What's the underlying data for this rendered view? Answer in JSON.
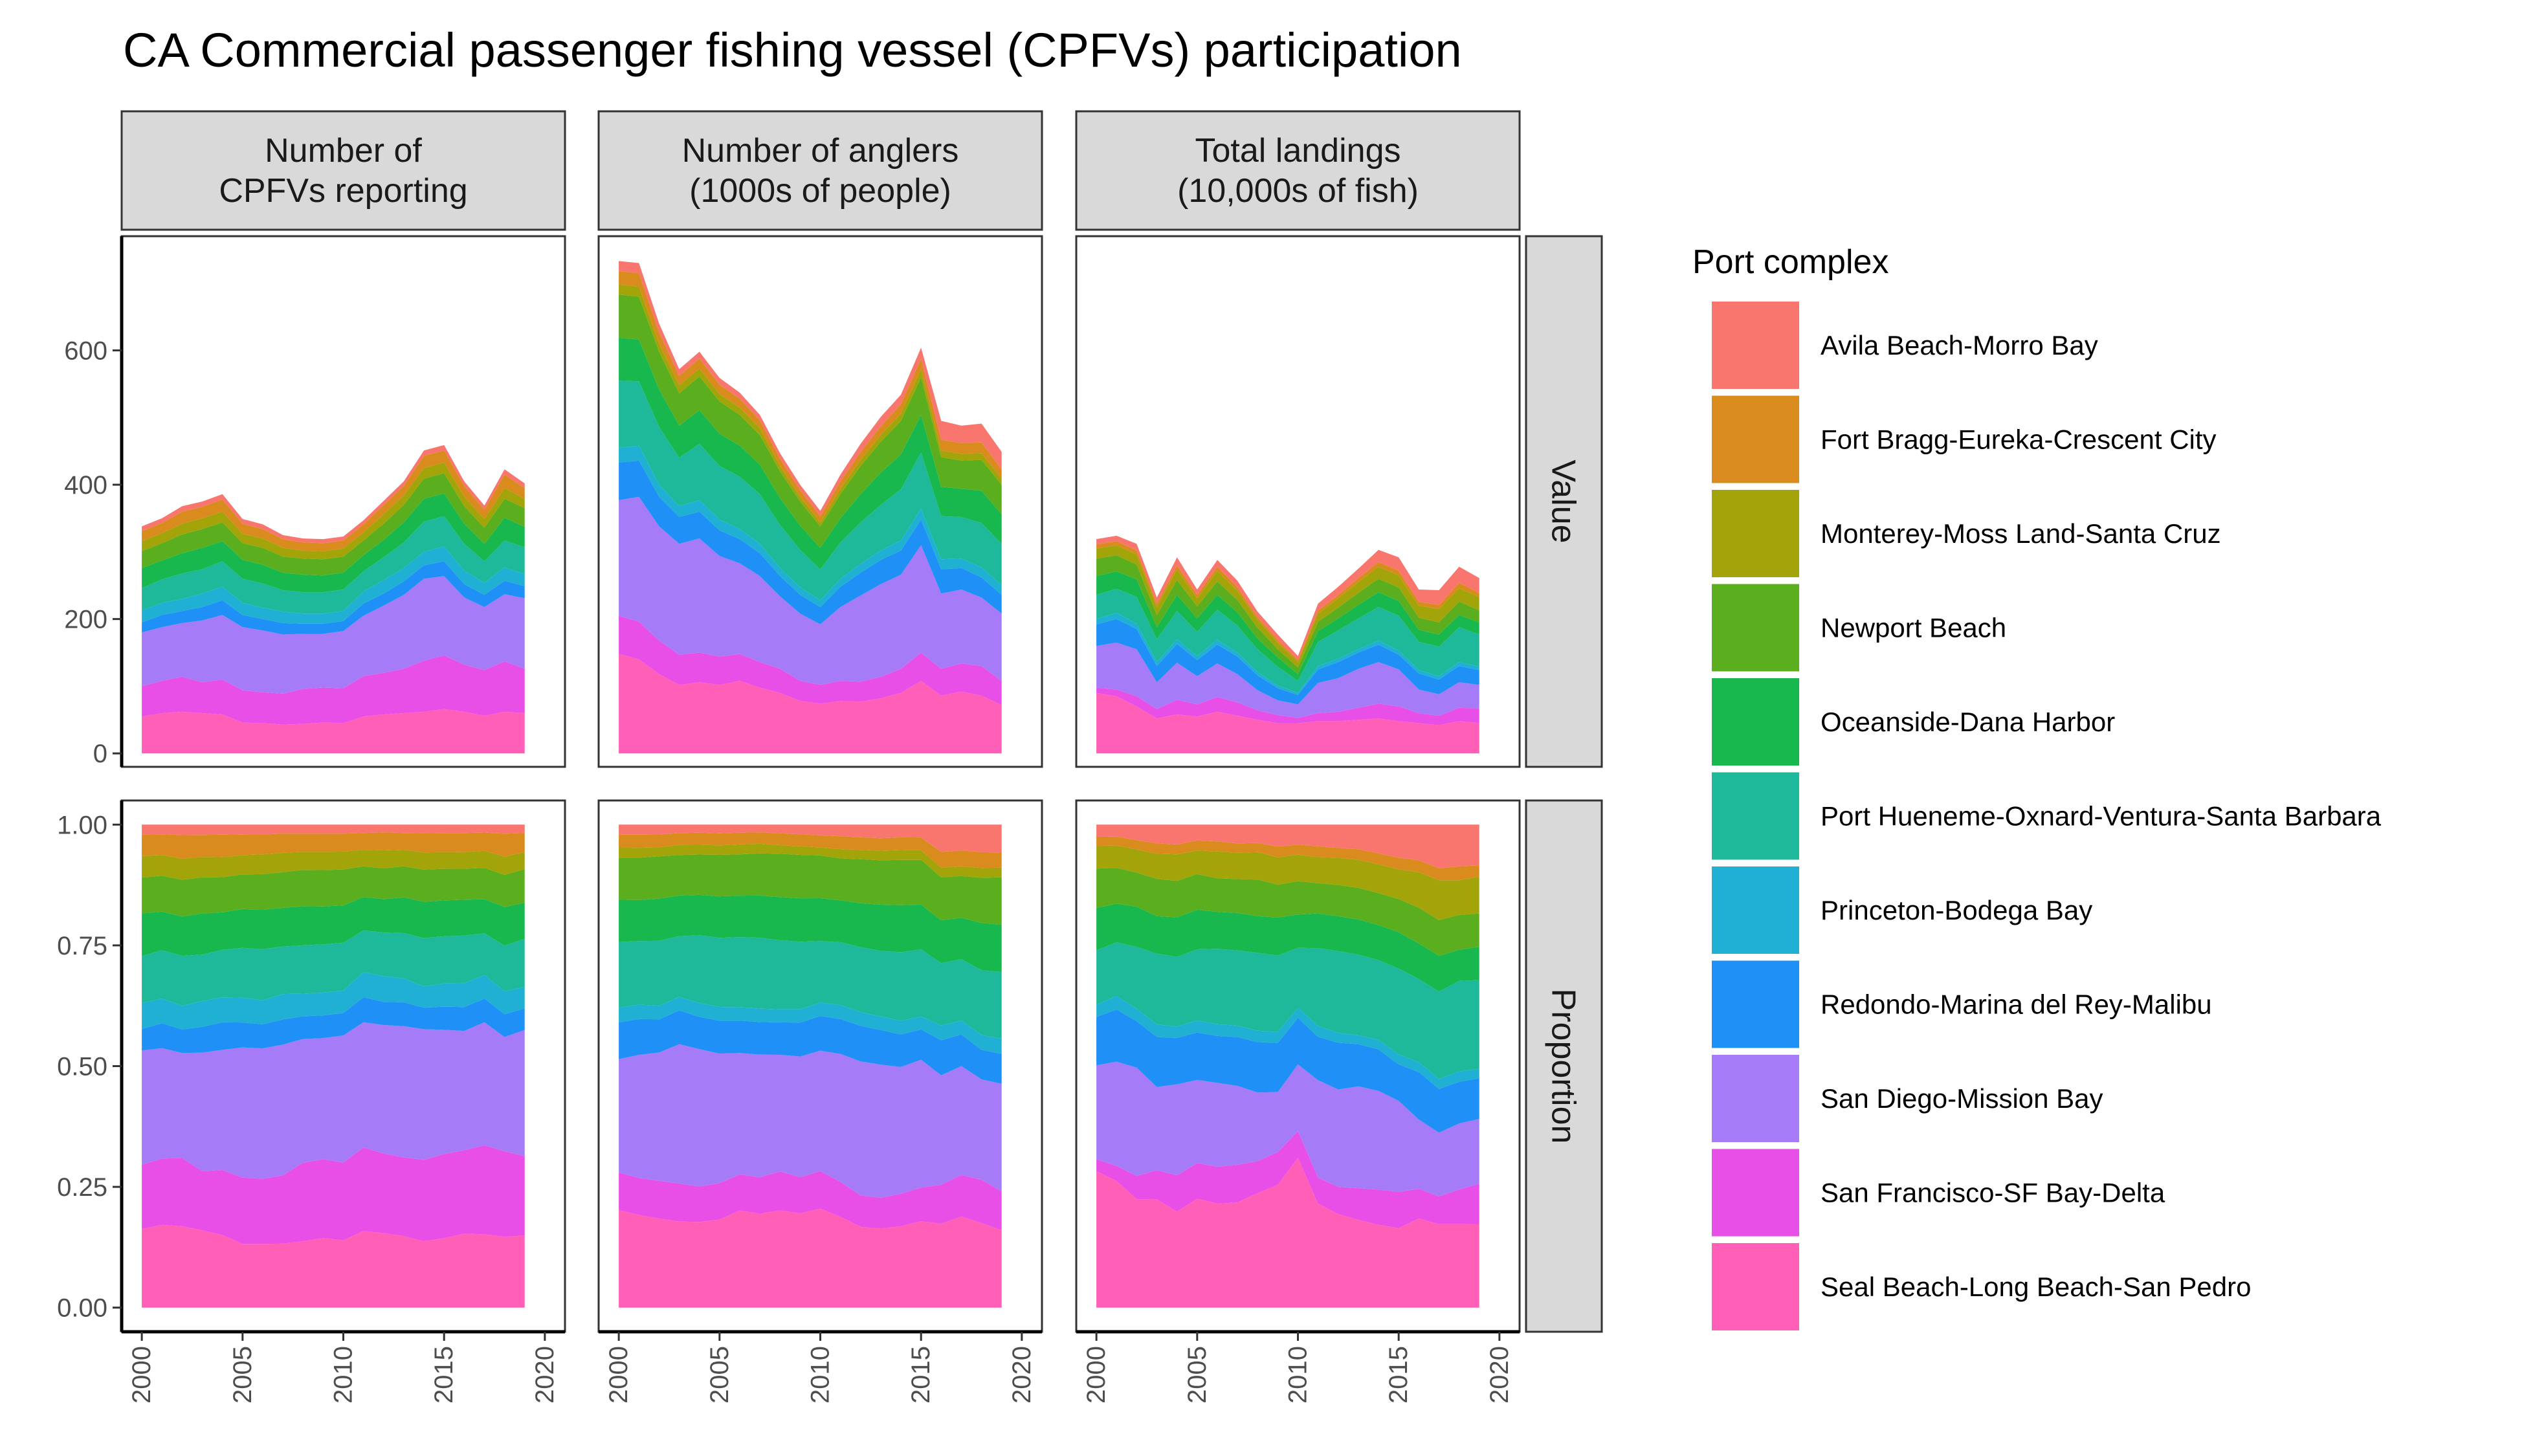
{
  "title": "CA Commercial passenger fishing vessel (CPFVs) participation",
  "legend": {
    "title": "Port complex"
  },
  "colors": {
    "Avila Beach-Morro Bay": "#F8766D",
    "Fort Bragg-Eureka-Crescent City": "#D98B1E",
    "Monterey-Moss Land-Santa Cruz": "#A3A30A",
    "Newport Beach": "#5BAE1E",
    "Oceanside-Dana Harbor": "#19B84E",
    "Port Hueneme-Oxnard-Ventura-Santa Barbara": "#1EB99A",
    "Princeton-Bodega Bay": "#1FB0D4",
    "Redondo-Marina del Rey-Malibu": "#1F90F5",
    "San Diego-Mission Bay": "#A57BF8",
    "San Francisco-SF Bay-Delta": "#E84FE6",
    "Seal Beach-Long Beach-San Pedro": "#FF5FB6"
  },
  "chart_data": {
    "type": "area",
    "stacked": true,
    "title": "CA Commercial passenger fishing vessel (CPFVs) participation",
    "x": [
      2000,
      2001,
      2002,
      2003,
      2004,
      2005,
      2006,
      2007,
      2008,
      2009,
      2010,
      2011,
      2012,
      2013,
      2014,
      2015,
      2016,
      2017,
      2018,
      2019
    ],
    "x_ticks": [
      "2000",
      "2005",
      "2010",
      "2015",
      "2020"
    ],
    "xlim": [
      1999,
      2021
    ],
    "columns": [
      {
        "key": "vessels",
        "label": "Number of\nCPFVs reporting"
      },
      {
        "key": "anglers",
        "label": "Number of anglers\n(1000s of people)"
      },
      {
        "key": "landings",
        "label": "Total landings\n(10,000s of fish)"
      }
    ],
    "rows": [
      {
        "key": "value",
        "label": "Value",
        "ylim": [
          -20,
          770
        ],
        "y_ticks": [
          0,
          200,
          400,
          600
        ],
        "y_tick_labels": [
          "0",
          "200",
          "400",
          "600"
        ]
      },
      {
        "key": "proportion",
        "label": "Proportion",
        "ylim": [
          -0.05,
          1.05
        ],
        "y_ticks": [
          0,
          0.25,
          0.5,
          0.75,
          1
        ],
        "y_tick_labels": [
          "0.00",
          "0.25",
          "0.50",
          "0.75",
          "1.00"
        ]
      }
    ],
    "grid": false,
    "legend_position": "right",
    "series_order": [
      "Seal Beach-Long Beach-San Pedro",
      "San Francisco-SF Bay-Delta",
      "San Diego-Mission Bay",
      "Redondo-Marina del Rey-Malibu",
      "Princeton-Bodega Bay",
      "Port Hueneme-Oxnard-Ventura-Santa Barbara",
      "Oceanside-Dana Harbor",
      "Newport Beach",
      "Monterey-Moss Land-Santa Cruz",
      "Fort Bragg-Eureka-Crescent City",
      "Avila Beach-Morro Bay"
    ],
    "legend_order": [
      "Avila Beach-Morro Bay",
      "Fort Bragg-Eureka-Crescent City",
      "Monterey-Moss Land-Santa Cruz",
      "Newport Beach",
      "Oceanside-Dana Harbor",
      "Port Hueneme-Oxnard-Ventura-Santa Barbara",
      "Princeton-Bodega Bay",
      "Redondo-Marina del Rey-Malibu",
      "San Diego-Mission Bay",
      "San Francisco-SF Bay-Delta",
      "Seal Beach-Long Beach-San Pedro"
    ],
    "series": {
      "vessels": [
        {
          "name": "Seal Beach-Long Beach-San Pedro",
          "values": [
            55,
            60,
            62,
            60,
            58,
            46,
            45,
            43,
            44,
            46,
            45,
            55,
            58,
            60,
            62,
            66,
            62,
            56,
            62,
            60
          ]
        },
        {
          "name": "San Francisco-SF Bay-Delta",
          "values": [
            45,
            48,
            52,
            46,
            52,
            48,
            46,
            46,
            52,
            52,
            52,
            60,
            62,
            66,
            76,
            80,
            70,
            68,
            75,
            66
          ]
        },
        {
          "name": "San Diego-Mission Bay",
          "values": [
            80,
            80,
            80,
            92,
            96,
            94,
            92,
            88,
            82,
            80,
            85,
            90,
            100,
            110,
            122,
            118,
            100,
            94,
            100,
            105
          ]
        },
        {
          "name": "Redondo-Marina del Rey-Malibu",
          "values": [
            15,
            18,
            18,
            20,
            22,
            18,
            17,
            17,
            15,
            15,
            15,
            18,
            18,
            20,
            20,
            22,
            20,
            18,
            20,
            18
          ]
        },
        {
          "name": "Princeton-Bodega Bay",
          "values": [
            18,
            18,
            18,
            20,
            20,
            18,
            17,
            17,
            15,
            15,
            15,
            18,
            20,
            20,
            20,
            22,
            20,
            18,
            20,
            18
          ]
        },
        {
          "name": "Port Hueneme-Oxnard-Ventura-Santa Barbara",
          "values": [
            33,
            35,
            38,
            36,
            38,
            36,
            36,
            32,
            32,
            32,
            32,
            30,
            34,
            38,
            45,
            45,
            40,
            32,
            40,
            40
          ]
        },
        {
          "name": "Oceanside-Dana Harbor",
          "values": [
            30,
            28,
            30,
            32,
            30,
            28,
            28,
            26,
            26,
            25,
            25,
            24,
            26,
            30,
            34,
            34,
            30,
            26,
            34,
            30
          ]
        },
        {
          "name": "Newport Beach",
          "values": [
            25,
            26,
            28,
            28,
            28,
            25,
            25,
            24,
            24,
            24,
            24,
            22,
            24,
            26,
            30,
            30,
            26,
            24,
            28,
            28
          ]
        },
        {
          "name": "Monterey-Moss Land-Santa Cruz",
          "values": [
            15,
            15,
            16,
            16,
            16,
            14,
            14,
            13,
            12,
            12,
            12,
            12,
            14,
            14,
            16,
            16,
            14,
            13,
            16,
            14
          ]
        },
        {
          "name": "Fort Bragg-Eureka-Crescent City",
          "values": [
            15,
            15,
            18,
            17,
            18,
            15,
            14,
            13,
            12,
            12,
            12,
            12,
            14,
            14,
            18,
            18,
            16,
            14,
            20,
            16
          ]
        },
        {
          "name": "Avila Beach-Morro Bay",
          "values": [
            7,
            7,
            8,
            8,
            8,
            7,
            7,
            6,
            6,
            6,
            6,
            6,
            6,
            7,
            8,
            8,
            7,
            6,
            8,
            7
          ]
        }
      ],
      "anglers": [
        {
          "name": "Seal Beach-Long Beach-San Pedro",
          "values": [
            148,
            140,
            118,
            102,
            106,
            102,
            108,
            98,
            90,
            78,
            74,
            78,
            77,
            82,
            90,
            108,
            86,
            92,
            86,
            72
          ]
        },
        {
          "name": "San Francisco-SF Bay-Delta",
          "values": [
            57,
            56,
            50,
            45,
            44,
            42,
            40,
            38,
            36,
            30,
            28,
            30,
            30,
            32,
            36,
            42,
            40,
            42,
            44,
            36
          ]
        },
        {
          "name": "San Diego-Mission Bay",
          "values": [
            172,
            186,
            170,
            165,
            170,
            150,
            135,
            128,
            108,
            100,
            90,
            110,
            128,
            138,
            140,
            160,
            112,
            110,
            102,
            100
          ]
        },
        {
          "name": "Redondo-Marina del Rey-Malibu",
          "values": [
            56,
            54,
            44,
            40,
            40,
            38,
            36,
            34,
            30,
            28,
            26,
            30,
            34,
            36,
            36,
            38,
            36,
            32,
            30,
            28
          ]
        },
        {
          "name": "Princeton-Bodega Bay",
          "values": [
            22,
            22,
            18,
            16,
            17,
            16,
            15,
            14,
            12,
            11,
            10,
            12,
            13,
            14,
            15,
            16,
            15,
            14,
            15,
            14
          ]
        },
        {
          "name": "Port Hueneme-Oxnard-Ventura-Santa Barbara",
          "values": [
            100,
            96,
            86,
            72,
            84,
            80,
            78,
            74,
            64,
            56,
            46,
            54,
            62,
            68,
            76,
            84,
            64,
            62,
            66,
            62
          ]
        },
        {
          "name": "Oceanside-Dana Harbor",
          "values": [
            64,
            62,
            56,
            48,
            50,
            48,
            46,
            44,
            40,
            36,
            32,
            36,
            42,
            48,
            52,
            56,
            44,
            42,
            48,
            44
          ]
        },
        {
          "name": "Newport Beach",
          "values": [
            64,
            64,
            56,
            48,
            50,
            48,
            46,
            44,
            40,
            36,
            32,
            36,
            42,
            46,
            50,
            56,
            44,
            42,
            46,
            44
          ]
        },
        {
          "name": "Monterey-Moss Land-Santa Cruz",
          "values": [
            15,
            15,
            12,
            12,
            12,
            11,
            11,
            10,
            8,
            7,
            6,
            8,
            9,
            10,
            11,
            12,
            10,
            10,
            10,
            9
          ]
        },
        {
          "name": "Fort Bragg-Eureka-Crescent City",
          "values": [
            20,
            20,
            17,
            14,
            15,
            14,
            13,
            12,
            11,
            10,
            9,
            11,
            12,
            13,
            14,
            16,
            16,
            16,
            16,
            14
          ]
        },
        {
          "name": "Avila Beach-Morro Bay",
          "values": [
            15,
            15,
            13,
            10,
            10,
            10,
            9,
            8,
            8,
            8,
            8,
            10,
            12,
            14,
            14,
            16,
            28,
            26,
            28,
            26
          ]
        }
      ],
      "landings": [
        {
          "name": "Seal Beach-Long Beach-San Pedro",
          "values": [
            90,
            85,
            70,
            52,
            58,
            55,
            62,
            56,
            50,
            45,
            45,
            48,
            48,
            50,
            52,
            48,
            45,
            42,
            48,
            45
          ]
        },
        {
          "name": "San Francisco-SF Bay-Delta",
          "values": [
            8,
            10,
            15,
            14,
            22,
            18,
            22,
            20,
            14,
            12,
            8,
            12,
            14,
            18,
            22,
            22,
            15,
            14,
            20,
            22
          ]
        },
        {
          "name": "San Diego-Mission Bay",
          "values": [
            62,
            70,
            70,
            40,
            55,
            42,
            50,
            42,
            30,
            22,
            20,
            45,
            50,
            58,
            62,
            55,
            35,
            32,
            38,
            35
          ]
        },
        {
          "name": "Redondo-Marina del Rey-Malibu",
          "values": [
            32,
            35,
            30,
            24,
            28,
            24,
            28,
            26,
            22,
            18,
            14,
            20,
            24,
            24,
            26,
            22,
            24,
            22,
            24,
            22
          ]
        },
        {
          "name": "Princeton-Bodega Bay",
          "values": [
            8,
            9,
            8,
            6,
            7,
            6,
            7,
            6,
            5,
            4,
            3,
            5,
            5,
            5,
            6,
            6,
            5,
            5,
            6,
            5
          ]
        },
        {
          "name": "Port Hueneme-Oxnard-Ventura-Santa Barbara",
          "values": [
            36,
            36,
            40,
            34,
            42,
            36,
            45,
            40,
            34,
            28,
            18,
            36,
            42,
            46,
            50,
            52,
            42,
            44,
            52,
            48
          ]
        },
        {
          "name": "Oceanside-Dana Harbor",
          "values": [
            28,
            26,
            26,
            18,
            24,
            20,
            22,
            20,
            16,
            14,
            10,
            16,
            18,
            20,
            22,
            22,
            18,
            18,
            18,
            18
          ]
        },
        {
          "name": "Newport Beach",
          "values": [
            26,
            24,
            22,
            18,
            22,
            18,
            20,
            18,
            16,
            12,
            10,
            14,
            16,
            18,
            20,
            20,
            18,
            18,
            20,
            18
          ]
        },
        {
          "name": "Monterey-Moss Land-Santa Cruz",
          "values": [
            15,
            15,
            15,
            12,
            16,
            12,
            16,
            14,
            12,
            10,
            8,
            12,
            14,
            16,
            18,
            18,
            18,
            20,
            20,
            20
          ]
        },
        {
          "name": "Fort Bragg-Eureka-Crescent City",
          "values": [
            6,
            6,
            6,
            5,
            6,
            5,
            6,
            5,
            4,
            4,
            3,
            5,
            5,
            6,
            7,
            7,
            6,
            6,
            8,
            6
          ]
        },
        {
          "name": "Avila Beach-Morro Bay",
          "values": [
            8,
            8,
            10,
            9,
            12,
            8,
            10,
            10,
            8,
            8,
            6,
            10,
            12,
            14,
            18,
            20,
            18,
            22,
            24,
            22
          ]
        }
      ]
    }
  }
}
